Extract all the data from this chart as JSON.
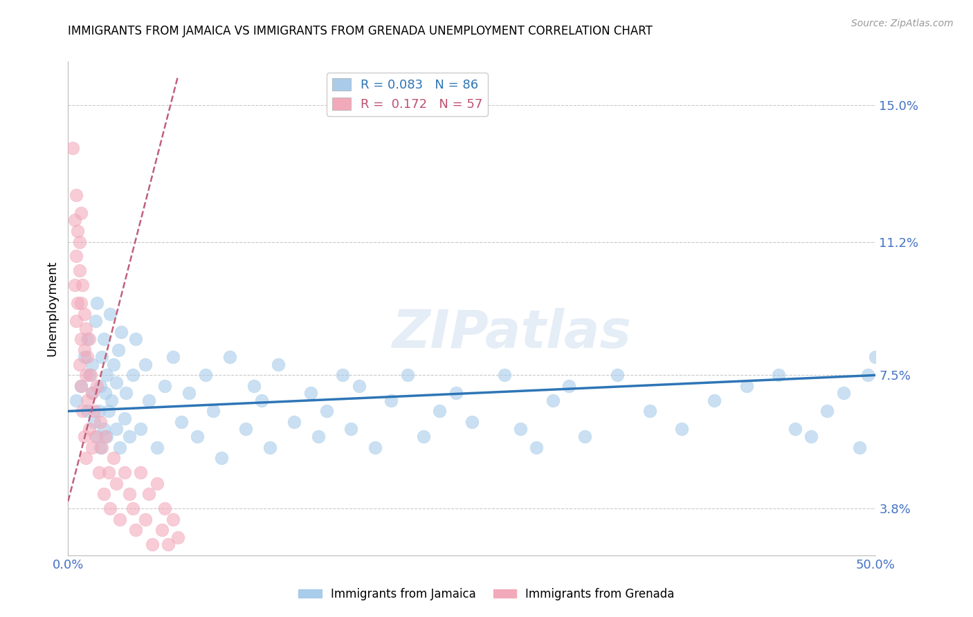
{
  "title": "IMMIGRANTS FROM JAMAICA VS IMMIGRANTS FROM GRENADA UNEMPLOYMENT CORRELATION CHART",
  "source_text": "Source: ZipAtlas.com",
  "ylabel": "Unemployment",
  "xlim": [
    0.0,
    0.5
  ],
  "ylim": [
    0.025,
    0.162
  ],
  "yticks": [
    0.038,
    0.075,
    0.112,
    0.15
  ],
  "ytick_labels": [
    "3.8%",
    "7.5%",
    "11.2%",
    "15.0%"
  ],
  "xticks": [
    0.0,
    0.1,
    0.2,
    0.3,
    0.4,
    0.5
  ],
  "xtick_labels": [
    "0.0%",
    "",
    "",
    "",
    "",
    "50.0%"
  ],
  "legend_jamaica": "Immigrants from Jamaica",
  "legend_grenada": "Immigrants from Grenada",
  "R_jamaica": "0.083",
  "N_jamaica": "86",
  "R_grenada": "0.172",
  "N_grenada": "57",
  "blue_color": "#A8CCEA",
  "pink_color": "#F2AABB",
  "blue_line_color": "#2E75B6",
  "pink_line_color": "#C0607A",
  "axis_label_color": "#4472C4",
  "watermark": "ZIPatlas",
  "jamaica_x": [
    0.005,
    0.008,
    0.01,
    0.012,
    0.012,
    0.013,
    0.015,
    0.015,
    0.016,
    0.017,
    0.018,
    0.018,
    0.019,
    0.02,
    0.02,
    0.021,
    0.022,
    0.022,
    0.023,
    0.024,
    0.024,
    0.025,
    0.026,
    0.027,
    0.028,
    0.03,
    0.03,
    0.031,
    0.032,
    0.033,
    0.035,
    0.036,
    0.038,
    0.04,
    0.042,
    0.045,
    0.048,
    0.05,
    0.055,
    0.06,
    0.065,
    0.07,
    0.075,
    0.08,
    0.085,
    0.09,
    0.095,
    0.1,
    0.11,
    0.115,
    0.12,
    0.125,
    0.13,
    0.14,
    0.15,
    0.155,
    0.16,
    0.17,
    0.175,
    0.18,
    0.19,
    0.2,
    0.21,
    0.22,
    0.23,
    0.24,
    0.25,
    0.27,
    0.28,
    0.29,
    0.3,
    0.31,
    0.32,
    0.34,
    0.36,
    0.38,
    0.4,
    0.42,
    0.44,
    0.45,
    0.46,
    0.47,
    0.48,
    0.49,
    0.495,
    0.5
  ],
  "jamaica_y": [
    0.068,
    0.072,
    0.08,
    0.065,
    0.085,
    0.075,
    0.07,
    0.078,
    0.062,
    0.09,
    0.058,
    0.095,
    0.065,
    0.072,
    0.055,
    0.08,
    0.06,
    0.085,
    0.07,
    0.058,
    0.075,
    0.065,
    0.092,
    0.068,
    0.078,
    0.06,
    0.073,
    0.082,
    0.055,
    0.087,
    0.063,
    0.07,
    0.058,
    0.075,
    0.085,
    0.06,
    0.078,
    0.068,
    0.055,
    0.072,
    0.08,
    0.062,
    0.07,
    0.058,
    0.075,
    0.065,
    0.052,
    0.08,
    0.06,
    0.072,
    0.068,
    0.055,
    0.078,
    0.062,
    0.07,
    0.058,
    0.065,
    0.075,
    0.06,
    0.072,
    0.055,
    0.068,
    0.075,
    0.058,
    0.065,
    0.07,
    0.062,
    0.075,
    0.06,
    0.055,
    0.068,
    0.072,
    0.058,
    0.075,
    0.065,
    0.06,
    0.068,
    0.072,
    0.075,
    0.06,
    0.058,
    0.065,
    0.07,
    0.055,
    0.075,
    0.08
  ],
  "grenada_x": [
    0.003,
    0.004,
    0.004,
    0.005,
    0.005,
    0.005,
    0.006,
    0.006,
    0.007,
    0.007,
    0.007,
    0.008,
    0.008,
    0.008,
    0.008,
    0.009,
    0.009,
    0.01,
    0.01,
    0.01,
    0.011,
    0.011,
    0.011,
    0.012,
    0.012,
    0.013,
    0.013,
    0.014,
    0.015,
    0.015,
    0.016,
    0.017,
    0.018,
    0.019,
    0.02,
    0.021,
    0.022,
    0.023,
    0.025,
    0.026,
    0.028,
    0.03,
    0.032,
    0.035,
    0.038,
    0.04,
    0.042,
    0.045,
    0.048,
    0.05,
    0.052,
    0.055,
    0.058,
    0.06,
    0.062,
    0.065,
    0.068
  ],
  "grenada_y": [
    0.138,
    0.1,
    0.118,
    0.108,
    0.09,
    0.125,
    0.115,
    0.095,
    0.112,
    0.078,
    0.104,
    0.095,
    0.085,
    0.12,
    0.072,
    0.1,
    0.065,
    0.092,
    0.082,
    0.058,
    0.088,
    0.075,
    0.052,
    0.08,
    0.068,
    0.085,
    0.06,
    0.075,
    0.07,
    0.055,
    0.065,
    0.058,
    0.072,
    0.048,
    0.062,
    0.055,
    0.042,
    0.058,
    0.048,
    0.038,
    0.052,
    0.045,
    0.035,
    0.048,
    0.042,
    0.038,
    0.032,
    0.048,
    0.035,
    0.042,
    0.028,
    0.045,
    0.032,
    0.038,
    0.028,
    0.035,
    0.03
  ],
  "jamaica_line_x0": 0.0,
  "jamaica_line_x1": 0.5,
  "jamaica_line_y0": 0.065,
  "jamaica_line_y1": 0.075,
  "grenada_line_x0": 0.0,
  "grenada_line_x1": 0.068,
  "grenada_line_y0": 0.04,
  "grenada_line_y1": 0.158
}
